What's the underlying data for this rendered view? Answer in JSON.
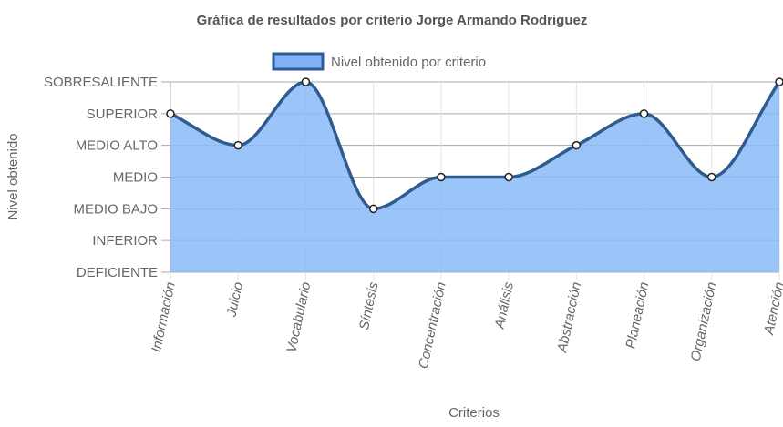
{
  "chart_data": {
    "type": "line",
    "title": "Gráfica de resultados por criterio Jorge Armando Rodriguez",
    "xlabel": "Criterios",
    "ylabel": "Nivel obtenido",
    "y_levels": [
      "DEFICIENTE",
      "INFERIOR",
      "MEDIO BAJO",
      "MEDIO",
      "MEDIO ALTO",
      "SUPERIOR",
      "SOBRESALIENTE"
    ],
    "ylim": [
      0,
      6
    ],
    "categories": [
      "Información",
      "Juicio",
      "Vocabulario",
      "Síntesis",
      "Concentración",
      "Análisis",
      "Abstracción",
      "Planeación",
      "Organización",
      "Atención"
    ],
    "series": [
      {
        "name": "Nivel obtenido por criterio",
        "values": [
          5,
          4,
          6,
          2,
          3,
          3,
          4,
          5,
          3,
          6
        ]
      }
    ],
    "fill": true,
    "curve": "smooth",
    "grid": true,
    "legend_position": "top",
    "colors": {
      "fill": "#89bbf7",
      "line": "#2f5b8f",
      "legend_fill": "#7fb3f5",
      "legend_border": "#2f5b9a",
      "grid": "#aaaaaa",
      "point_fill": "#ffffff",
      "point_stroke": "#222222"
    }
  }
}
